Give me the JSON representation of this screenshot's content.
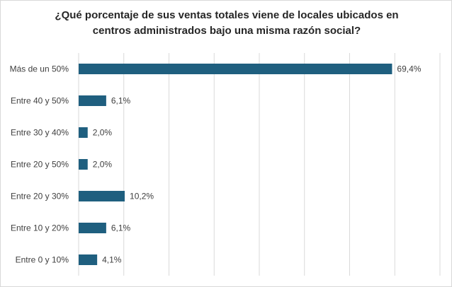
{
  "chart_data": {
    "type": "bar",
    "orientation": "horizontal",
    "title_line1": "¿Qué porcentaje de sus ventas totales viene de locales ubicados en",
    "title_line2": "centros administrados bajo una misma razón social?",
    "categories": [
      "Más de un 50%",
      "Entre 40 y 50%",
      "Entre 30 y 40%",
      "Entre 20 y 50%",
      "Entre 20 y 30%",
      "Entre 10 y 20%",
      "Entre 0 y 10%"
    ],
    "values": [
      69.4,
      6.1,
      2.0,
      2.0,
      10.2,
      6.1,
      4.1
    ],
    "value_labels": [
      "69,4%",
      "6,1%",
      "2,0%",
      "2,0%",
      "10,2%",
      "6,1%",
      "4,1%"
    ],
    "xlim": [
      0,
      80
    ],
    "grid": true,
    "bar_color": "#1f5f7f",
    "grid_color": "#d9d9d9"
  }
}
